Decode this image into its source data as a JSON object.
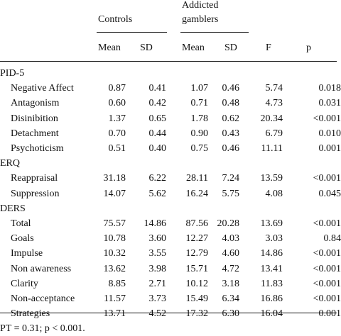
{
  "table": {
    "group_controls": "Controls",
    "group_gamblers_line1": "Addicted",
    "group_gamblers_line2": "gamblers",
    "columns": [
      "Mean",
      "SD",
      "Mean",
      "SD",
      "F",
      "p"
    ],
    "sections": [
      {
        "title": "PID-5",
        "rows": [
          {
            "label": "Negative Affect",
            "values": [
              "0.87",
              "0.41",
              "1.07",
              "0.46",
              "5.74",
              "0.018"
            ]
          },
          {
            "label": "Antagonism",
            "values": [
              "0.60",
              "0.42",
              "0.71",
              "0.48",
              "4.73",
              "0.031"
            ]
          },
          {
            "label": "Disinibition",
            "values": [
              "1.37",
              "0.65",
              "1.78",
              "0.62",
              "20.34",
              "<0.001"
            ]
          },
          {
            "label": "Detachment",
            "values": [
              "0.70",
              "0.44",
              "0.90",
              "0.43",
              "6.79",
              "0.010"
            ]
          },
          {
            "label": "Psychoticism",
            "values": [
              "0.51",
              "0.40",
              "0.75",
              "0.46",
              "11.11",
              "0.001"
            ]
          }
        ]
      },
      {
        "title": "ERQ",
        "rows": [
          {
            "label": "Reappraisal",
            "values": [
              "31.18",
              "6.22",
              "28.11",
              "7.24",
              "13.59",
              "<0.001"
            ]
          },
          {
            "label": "Suppression",
            "values": [
              "14.07",
              "5.62",
              "16.24",
              "5.75",
              "4.08",
              "0.045"
            ]
          }
        ]
      },
      {
        "title": "DERS",
        "rows": [
          {
            "label": "Total",
            "values": [
              "75.57",
              "14.86",
              "87.56",
              "20.28",
              "13.69",
              "<0.001"
            ]
          },
          {
            "label": "Goals",
            "values": [
              "10.78",
              "3.60",
              "12.27",
              "4.03",
              "3.03",
              "0.84"
            ]
          },
          {
            "label": "Impulse",
            "values": [
              "10.32",
              "3.55",
              "12.79",
              "4.60",
              "14.86",
              "<0.001"
            ]
          },
          {
            "label": "Non awareness",
            "values": [
              "13.62",
              "3.98",
              "15.71",
              "4.72",
              "13.41",
              "<0.001"
            ]
          },
          {
            "label": "Clarity",
            "values": [
              "8.85",
              "2.71",
              "10.12",
              "3.18",
              "11.83",
              "<0.001"
            ]
          },
          {
            "label": "Non-acceptance",
            "values": [
              "11.57",
              "3.73",
              "15.49",
              "6.34",
              "16.86",
              "<0.001"
            ]
          },
          {
            "label": "Strategies",
            "values": [
              "13.71",
              "4.52",
              "17.32",
              "6.30",
              "16.04",
              "0.001"
            ]
          }
        ]
      }
    ],
    "footnote": "PT = 0.31; p < 0.001."
  }
}
